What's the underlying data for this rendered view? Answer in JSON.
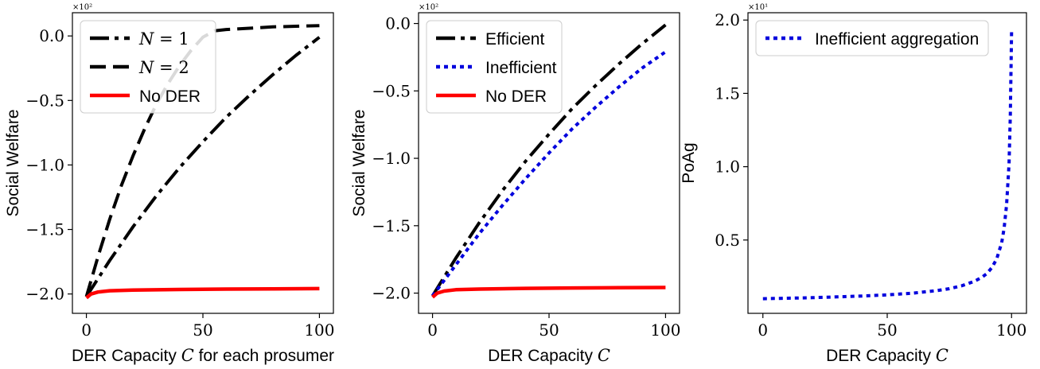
{
  "chart_data": [
    {
      "type": "line",
      "title": "",
      "xlabel_parts": [
        "DER Capacity ",
        "C",
        " for each prosumer"
      ],
      "ylabel": "Social Welfare",
      "multiplier": "×10²",
      "xlim": [
        -6,
        106
      ],
      "ylim": [
        -2.15,
        0.18
      ],
      "xticks": [
        0,
        50,
        100
      ],
      "xtick_labels": [
        "0",
        "50",
        "100"
      ],
      "yticks": [
        0.0,
        -0.5,
        -1.0,
        -1.5,
        -2.0
      ],
      "ytick_labels": [
        "0.0",
        "−0.5",
        "−1.0",
        "−1.5",
        "−2.0"
      ],
      "legend_position": "top-left",
      "series": [
        {
          "name": "N = 1",
          "name_parts": [
            "N",
            " = 1"
          ],
          "color": "#000000",
          "style": "dashdot",
          "x": [
            0,
            10,
            20,
            30,
            40,
            50,
            60,
            70,
            80,
            90,
            100
          ],
          "y": [
            -2.02,
            -1.74,
            -1.48,
            -1.24,
            -1.02,
            -0.82,
            -0.63,
            -0.46,
            -0.3,
            -0.15,
            -0.01
          ]
        },
        {
          "name": "N = 2",
          "name_parts": [
            "N",
            " = 2"
          ],
          "color": "#000000",
          "style": "dashed",
          "x": [
            0,
            5,
            10,
            15,
            20,
            25,
            30,
            35,
            40,
            45,
            50,
            55,
            60,
            70,
            80,
            90,
            100
          ],
          "y": [
            -2.02,
            -1.71,
            -1.42,
            -1.16,
            -0.93,
            -0.72,
            -0.53,
            -0.37,
            -0.23,
            -0.11,
            -0.01,
            0.04,
            0.05,
            0.06,
            0.07,
            0.075,
            0.08
          ]
        },
        {
          "name": "No DER",
          "name_parts": [
            "No DER"
          ],
          "color": "#ff0000",
          "style": "solid",
          "x": [
            0,
            2,
            5,
            10,
            20,
            40,
            60,
            80,
            100
          ],
          "y": [
            -2.03,
            -2.0,
            -1.985,
            -1.975,
            -1.97,
            -1.965,
            -1.962,
            -1.96,
            -1.958
          ]
        }
      ]
    },
    {
      "type": "line",
      "title": "",
      "xlabel_parts": [
        "DER Capacity ",
        "C",
        ""
      ],
      "ylabel": "Social Welfare",
      "multiplier": "×10²",
      "xlim": [
        -6,
        106
      ],
      "ylim": [
        -2.15,
        0.08
      ],
      "xticks": [
        0,
        50,
        100
      ],
      "xtick_labels": [
        "0",
        "50",
        "100"
      ],
      "yticks": [
        0.0,
        -0.5,
        -1.0,
        -1.5,
        -2.0
      ],
      "ytick_labels": [
        "0.0",
        "−0.5",
        "−1.0",
        "−1.5",
        "−2.0"
      ],
      "legend_position": "top-left",
      "series": [
        {
          "name": "Efficient",
          "name_parts": [
            "Efficient"
          ],
          "color": "#000000",
          "style": "dashdot",
          "x": [
            0,
            10,
            20,
            30,
            40,
            50,
            60,
            70,
            80,
            90,
            100
          ],
          "y": [
            -2.02,
            -1.74,
            -1.48,
            -1.24,
            -1.02,
            -0.82,
            -0.63,
            -0.46,
            -0.3,
            -0.15,
            -0.01
          ]
        },
        {
          "name": "Inefficient",
          "name_parts": [
            "Inefficient"
          ],
          "color": "#0000dd",
          "style": "dotted",
          "x": [
            0,
            10,
            20,
            30,
            40,
            50,
            60,
            70,
            80,
            90,
            100
          ],
          "y": [
            -2.02,
            -1.79,
            -1.56,
            -1.35,
            -1.15,
            -0.96,
            -0.78,
            -0.62,
            -0.47,
            -0.33,
            -0.21
          ]
        },
        {
          "name": "No DER",
          "name_parts": [
            "No DER"
          ],
          "color": "#ff0000",
          "style": "solid",
          "x": [
            0,
            2,
            5,
            10,
            20,
            40,
            60,
            80,
            100
          ],
          "y": [
            -2.03,
            -2.0,
            -1.985,
            -1.975,
            -1.97,
            -1.965,
            -1.962,
            -1.96,
            -1.958
          ]
        }
      ]
    },
    {
      "type": "line",
      "title": "",
      "xlabel_parts": [
        "DER Capacity ",
        "C",
        ""
      ],
      "ylabel": "PoAg",
      "multiplier": "×10¹",
      "xlim": [
        -6,
        106
      ],
      "ylim": [
        0.0,
        2.05
      ],
      "xticks": [
        0,
        50,
        100
      ],
      "xtick_labels": [
        "0",
        "50",
        "100"
      ],
      "yticks": [
        0.5,
        1.0,
        1.5,
        2.0
      ],
      "ytick_labels": [
        "0.5",
        "1.0",
        "1.5",
        "2.0"
      ],
      "legend_position": "top-left",
      "series": [
        {
          "name": "Inefficient aggregation",
          "name_parts": [
            "Inefficient aggregation"
          ],
          "color": "#0000dd",
          "style": "dotted",
          "x": [
            0,
            10,
            20,
            30,
            40,
            50,
            60,
            70,
            75,
            80,
            85,
            88,
            90,
            92,
            94,
            96,
            97,
            98,
            99,
            99.5,
            100
          ],
          "y": [
            0.1,
            0.103,
            0.107,
            0.112,
            0.118,
            0.126,
            0.137,
            0.155,
            0.168,
            0.188,
            0.218,
            0.245,
            0.27,
            0.31,
            0.37,
            0.48,
            0.58,
            0.74,
            1.02,
            1.35,
            1.93
          ]
        }
      ]
    }
  ]
}
